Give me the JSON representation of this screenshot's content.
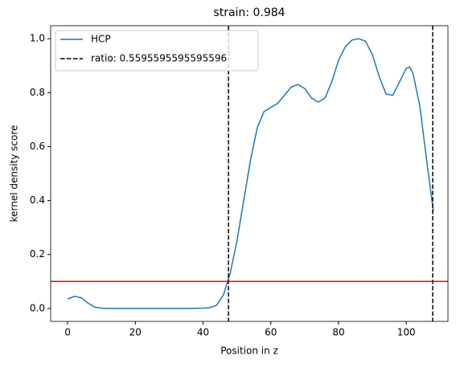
{
  "chart_data": {
    "type": "line",
    "title": "strain: 0.984",
    "xlabel": "Position in z",
    "ylabel": "kernel density score",
    "x": [
      0,
      2,
      4,
      6,
      8,
      10,
      12,
      16,
      20,
      24,
      28,
      32,
      36,
      40,
      42,
      44,
      46,
      48,
      50,
      52,
      54,
      56,
      58,
      60,
      62,
      64,
      66,
      68,
      70,
      72,
      74,
      76,
      78,
      80,
      82,
      84,
      86,
      88,
      90,
      92,
      94,
      96,
      98,
      100,
      101,
      102,
      104,
      106,
      108
    ],
    "series": [
      {
        "name": "HCP",
        "color": "#1f77b4",
        "values": [
          0.035,
          0.045,
          0.04,
          0.02,
          0.005,
          0.001,
          0,
          0,
          0,
          0,
          0,
          0,
          0,
          0.001,
          0.003,
          0.012,
          0.05,
          0.13,
          0.25,
          0.4,
          0.55,
          0.67,
          0.73,
          0.745,
          0.76,
          0.79,
          0.82,
          0.83,
          0.815,
          0.78,
          0.765,
          0.78,
          0.84,
          0.92,
          0.97,
          0.995,
          1.0,
          0.99,
          0.94,
          0.86,
          0.795,
          0.79,
          0.84,
          0.89,
          0.895,
          0.87,
          0.75,
          0.55,
          0.36
        ]
      }
    ],
    "vlines": {
      "name": "ratio: 0.5595595595595596",
      "color": "#000000",
      "values": [
        47.5,
        107.8
      ]
    },
    "hline": {
      "color": "#ff0000",
      "value": 0.1
    },
    "xlim": [
      -5,
      112.3
    ],
    "ylim": [
      -0.048,
      1.048
    ],
    "xticks": [
      0,
      20,
      40,
      60,
      80,
      100
    ],
    "yticks": [
      {
        "value": 0,
        "label": "0.0"
      },
      0.2,
      0.4,
      0.6,
      0.8,
      {
        "value": 1,
        "label": "1.0"
      }
    ],
    "legend": "upper left"
  }
}
